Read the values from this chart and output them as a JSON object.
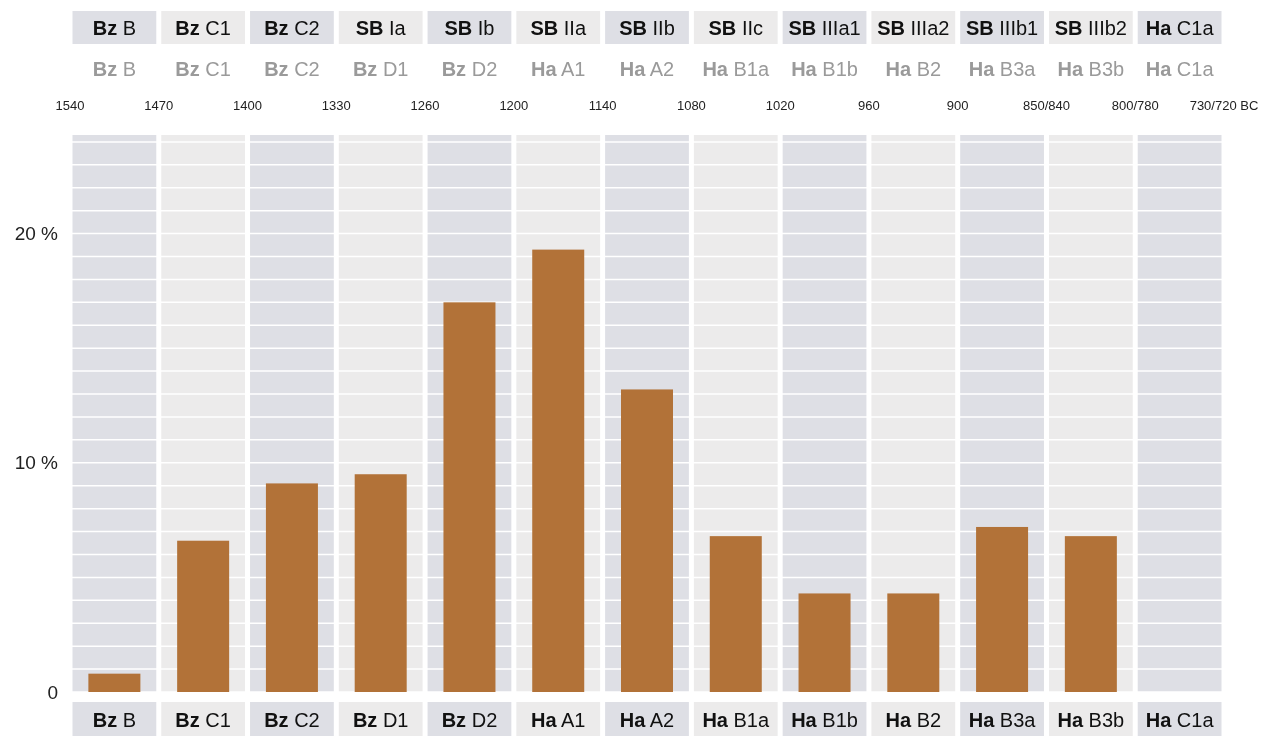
{
  "chart_data": {
    "type": "bar",
    "categories": [
      "Bz B",
      "Bz C1",
      "Bz C2",
      "Bz D1",
      "Bz D2",
      "Ha A1",
      "Ha A2",
      "Ha B1a",
      "Ha B1b",
      "Ha B2",
      "Ha B3a",
      "Ha B3b",
      "Ha C1a"
    ],
    "values": [
      0.8,
      6.6,
      9.1,
      9.5,
      17.0,
      19.3,
      13.2,
      6.8,
      4.3,
      4.3,
      7.2,
      6.8,
      null
    ],
    "color": "#b27238",
    "ylim": [
      0,
      24.3
    ],
    "yticks": [
      0,
      {
        "value": 1,
        "label": null
      },
      {
        "value": 2,
        "label": null
      },
      {
        "value": 3,
        "label": null
      },
      {
        "value": 4,
        "label": null
      },
      {
        "value": 5,
        "label": null
      },
      {
        "value": 6,
        "label": null
      },
      {
        "value": 7,
        "label": null
      },
      {
        "value": 8,
        "label": null
      },
      {
        "value": 9,
        "label": null
      },
      {
        "value": 10,
        "label": "10 %"
      },
      {
        "value": 11,
        "label": null
      },
      {
        "value": 12,
        "label": null
      },
      {
        "value": 13,
        "label": null
      },
      {
        "value": 14,
        "label": null
      },
      {
        "value": 15,
        "label": null
      },
      {
        "value": 16,
        "label": null
      },
      {
        "value": 17,
        "label": null
      },
      {
        "value": 18,
        "label": null
      },
      {
        "value": 19,
        "label": null
      },
      {
        "value": 20,
        "label": "20 %"
      },
      {
        "value": 21,
        "label": null
      },
      {
        "value": 22,
        "label": null
      },
      {
        "value": 23,
        "label": null
      },
      {
        "value": 24,
        "label": null
      }
    ],
    "annotations": [
      "Bz B",
      "Bz C1",
      "Bz C2",
      "SB Ia",
      "SB Ib",
      "SB IIa",
      "SB IIb",
      "SB IIc",
      "SB IIIa1",
      "SB IIIa2",
      "SB IIIb1",
      "SB IIIb2",
      "Ha C1a",
      "Bz B",
      "Bz C1",
      "Bz C2",
      "Bz D1",
      "Bz D2",
      "Ha A1",
      "Ha A2",
      "Ha B1a",
      "Ha B1b",
      "Ha B2",
      "Ha B3a",
      "Ha B3b",
      "Ha C1a",
      "1540",
      "1470",
      "1400",
      "1330",
      "1260",
      "1200",
      "1140",
      "1080",
      "1020",
      "960",
      "900",
      "850/840",
      "800/780",
      "730/720 BC"
    ],
    "bands": [
      {
        "axis": "x",
        "from": "Bz B",
        "to": "Bz B",
        "color": "#dedfe5"
      },
      {
        "axis": "x",
        "from": "Bz C1",
        "to": "Bz C1",
        "color": "#ecebeb"
      },
      {
        "axis": "x",
        "from": "Bz C2",
        "to": "Bz C2",
        "color": "#dedfe5"
      },
      {
        "axis": "x",
        "from": "Bz D1",
        "to": "Bz D1",
        "color": "#ecebeb"
      },
      {
        "axis": "x",
        "from": "Bz D2",
        "to": "Bz D2",
        "color": "#dedfe5"
      },
      {
        "axis": "x",
        "from": "Ha A1",
        "to": "Ha A1",
        "color": "#ecebeb"
      },
      {
        "axis": "x",
        "from": "Ha A2",
        "to": "Ha A2",
        "color": "#dedfe5"
      },
      {
        "axis": "x",
        "from": "Ha B1a",
        "to": "Ha B1a",
        "color": "#ecebeb"
      },
      {
        "axis": "x",
        "from": "Ha B1b",
        "to": "Ha B1b",
        "color": "#dedfe5"
      },
      {
        "axis": "x",
        "from": "Ha B2",
        "to": "Ha B2",
        "color": "#ecebeb"
      },
      {
        "axis": "x",
        "from": "Ha B3a",
        "to": "Ha B3a",
        "color": "#dedfe5"
      },
      {
        "axis": "x",
        "from": "Ha B3b",
        "to": "Ha B3b",
        "color": "#ecebeb"
      },
      {
        "axis": "x",
        "from": "Ha C1a",
        "to": "Ha C1a",
        "color": "#dedfe5"
      }
    ],
    "grid": "y"
  }
}
